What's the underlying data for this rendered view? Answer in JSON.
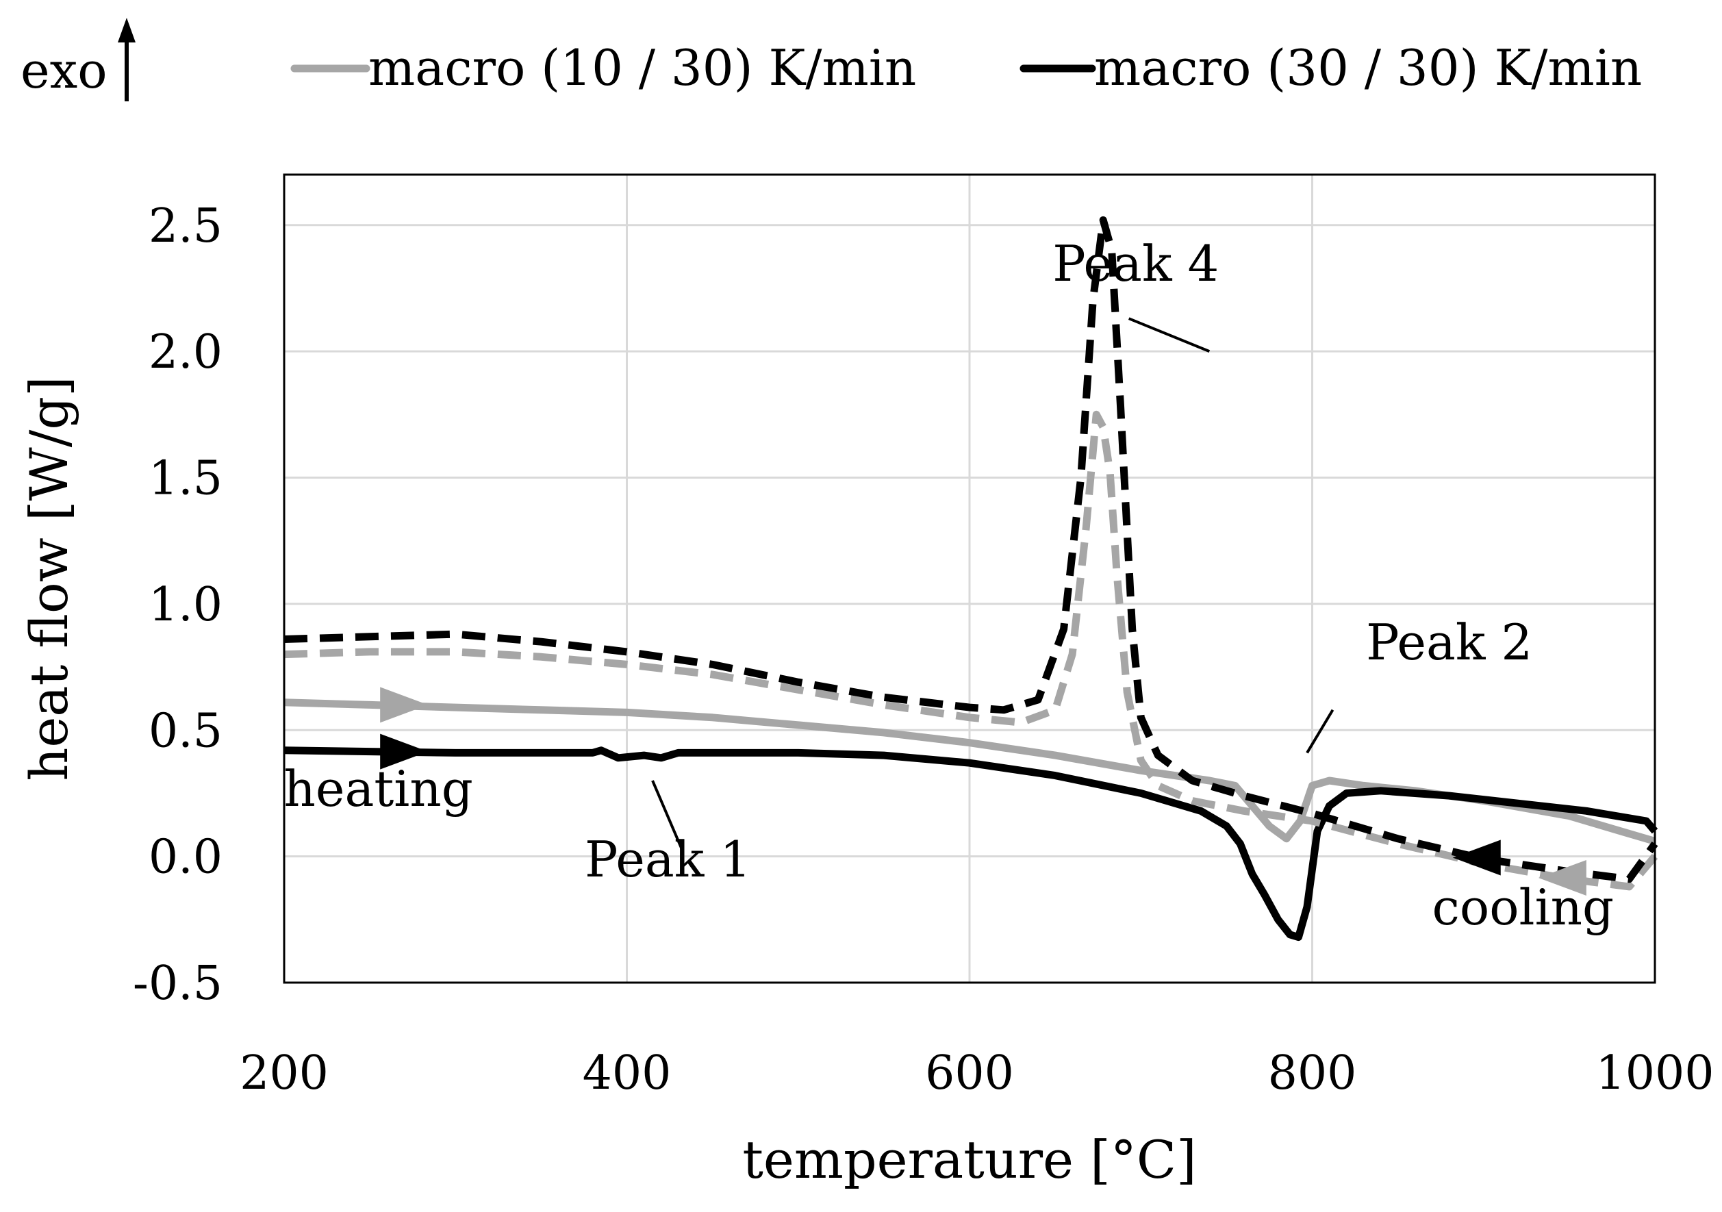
{
  "chart_data": {
    "type": "line",
    "xlabel": "temperature [°C]",
    "ylabel": "heat flow [W/g]",
    "xlim": [
      200,
      1000
    ],
    "ylim": [
      -0.5,
      2.7
    ],
    "x_ticks": [
      "200",
      "400",
      "600",
      "800",
      "1000"
    ],
    "x_tick_values": [
      200,
      400,
      600,
      800,
      1000
    ],
    "y_ticks": [
      "2.5",
      "2.0",
      "1.5",
      "1.0",
      "0.5",
      "0.0",
      "-0.5"
    ],
    "y_tick_values": [
      2.5,
      2.0,
      1.5,
      1.0,
      0.5,
      0.0,
      -0.5
    ],
    "grid": true,
    "exo_label": "exo",
    "legend": {
      "position": "top",
      "entries": [
        {
          "label": "macro (10 / 30) K/min",
          "color": "#a6a6a6"
        },
        {
          "label": "macro (30 / 30) K/min",
          "color": "#000000"
        }
      ]
    },
    "annotations": [
      {
        "text": "Peak 4",
        "x": 697,
        "y": 2.28,
        "leader": [
          [
            740,
            2.0
          ],
          [
            693,
            2.13
          ]
        ]
      },
      {
        "text": "Peak 2",
        "x": 880,
        "y": 0.78,
        "leader": [
          [
            812,
            0.58
          ],
          [
            797,
            0.41
          ]
        ]
      },
      {
        "text": "heating",
        "x": 255,
        "y": 0.2,
        "leader": null
      },
      {
        "text": "Peak 1",
        "x": 424,
        "y": -0.08,
        "leader": [
          [
            432,
            0.03
          ],
          [
            415,
            0.3
          ]
        ]
      },
      {
        "text": "cooling",
        "x": 923,
        "y": -0.27,
        "leader": null
      }
    ],
    "series": [
      {
        "name": "macro (10 / 30) K/min",
        "segment": "heating",
        "color": "#a6a6a6",
        "dash": "solid",
        "x": [
          200,
          250,
          300,
          350,
          400,
          450,
          500,
          550,
          600,
          650,
          700,
          740,
          755,
          765,
          775,
          785,
          793,
          800,
          810,
          830,
          860,
          900,
          950,
          980,
          1000
        ],
        "y": [
          0.61,
          0.6,
          0.59,
          0.58,
          0.57,
          0.55,
          0.52,
          0.49,
          0.45,
          0.4,
          0.34,
          0.3,
          0.28,
          0.2,
          0.12,
          0.07,
          0.14,
          0.28,
          0.3,
          0.28,
          0.26,
          0.22,
          0.16,
          0.1,
          0.06
        ]
      },
      {
        "name": "macro (30 / 30) K/min",
        "segment": "heating",
        "color": "#000000",
        "dash": "solid",
        "x": [
          200,
          300,
          380,
          385,
          395,
          410,
          420,
          430,
          500,
          550,
          600,
          650,
          700,
          735,
          750,
          758,
          765,
          772,
          780,
          787,
          792,
          797,
          803,
          810,
          820,
          840,
          880,
          920,
          960,
          995,
          1000
        ],
        "y": [
          0.42,
          0.41,
          0.41,
          0.42,
          0.39,
          0.4,
          0.39,
          0.41,
          0.41,
          0.4,
          0.37,
          0.32,
          0.25,
          0.18,
          0.12,
          0.05,
          -0.07,
          -0.15,
          -0.25,
          -0.31,
          -0.32,
          -0.2,
          0.1,
          0.2,
          0.25,
          0.26,
          0.24,
          0.21,
          0.18,
          0.14,
          0.1
        ]
      },
      {
        "name": "macro (10 / 30) K/min",
        "segment": "cooling",
        "color": "#a6a6a6",
        "dash": "dashed",
        "x": [
          200,
          250,
          300,
          350,
          400,
          450,
          500,
          550,
          600,
          630,
          650,
          660,
          668,
          674,
          678,
          682,
          686,
          692,
          700,
          710,
          730,
          760,
          800,
          850,
          900,
          950,
          985,
          1000
        ],
        "y": [
          0.8,
          0.81,
          0.81,
          0.79,
          0.76,
          0.72,
          0.66,
          0.6,
          0.55,
          0.53,
          0.58,
          0.8,
          1.3,
          1.75,
          1.7,
          1.52,
          1.12,
          0.65,
          0.38,
          0.28,
          0.22,
          0.18,
          0.14,
          0.05,
          -0.03,
          -0.09,
          -0.12,
          0.0
        ]
      },
      {
        "name": "macro (30 / 30) K/min",
        "segment": "cooling",
        "color": "#000000",
        "dash": "dashed",
        "x": [
          200,
          250,
          300,
          350,
          400,
          450,
          500,
          550,
          600,
          620,
          640,
          655,
          665,
          672,
          678,
          683,
          688,
          695,
          700,
          710,
          730,
          760,
          800,
          850,
          900,
          950,
          985,
          1000
        ],
        "y": [
          0.86,
          0.87,
          0.88,
          0.85,
          0.81,
          0.76,
          0.69,
          0.63,
          0.59,
          0.58,
          0.62,
          0.9,
          1.5,
          2.2,
          2.52,
          2.4,
          1.8,
          0.9,
          0.55,
          0.4,
          0.3,
          0.24,
          0.17,
          0.07,
          -0.01,
          -0.06,
          -0.09,
          0.05
        ]
      }
    ],
    "arrows": [
      {
        "series": 0,
        "x": 270,
        "y": 0.6,
        "direction": "right",
        "color": "#a6a6a6"
      },
      {
        "series": 1,
        "x": 270,
        "y": 0.415,
        "direction": "right",
        "color": "#000000"
      },
      {
        "series": 3,
        "x": 896,
        "y": -0.005,
        "direction": "left",
        "color": "#000000"
      },
      {
        "series": 2,
        "x": 946,
        "y": -0.085,
        "direction": "left",
        "color": "#a6a6a6"
      }
    ]
  }
}
